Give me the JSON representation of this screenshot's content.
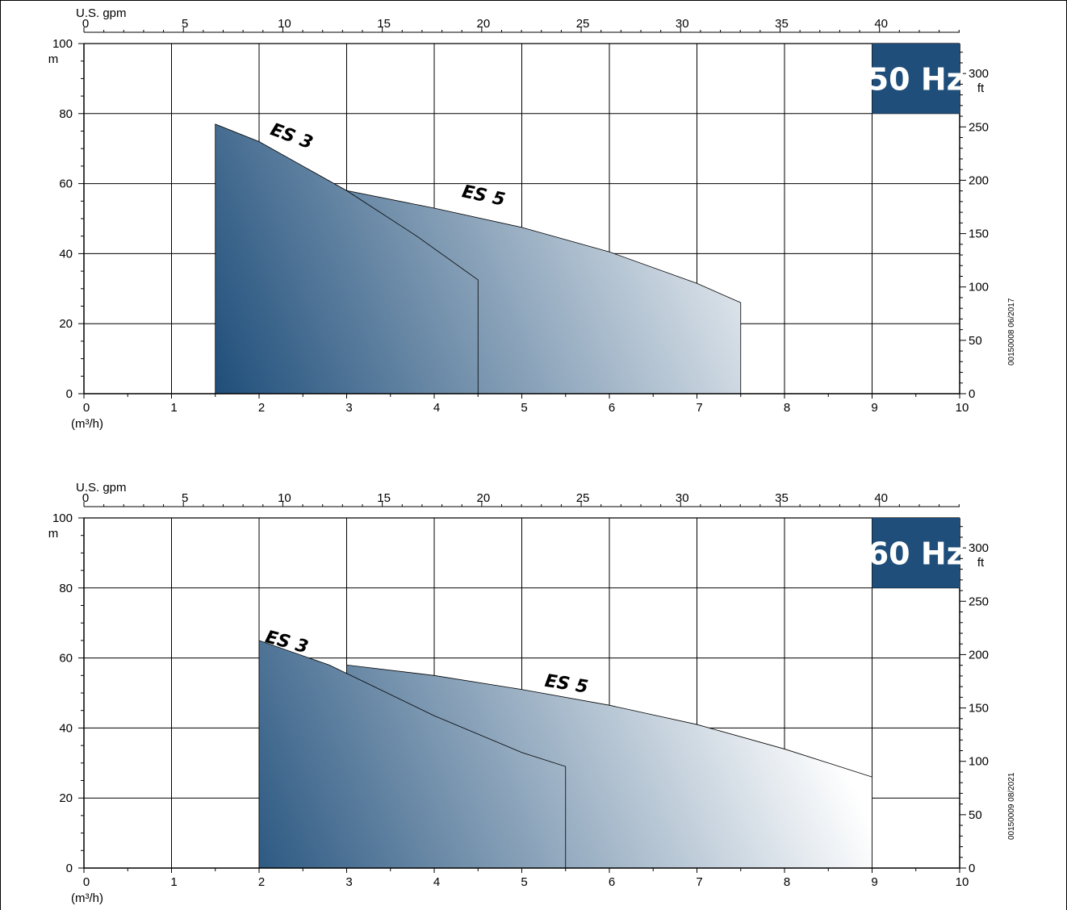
{
  "colors": {
    "accent": "#1f4e7a",
    "fill_dark": "#1f4e7a",
    "fill_light": "#ffffff",
    "grid": "#000000",
    "badge_text": "#ffffff"
  },
  "chart_data": [
    {
      "type": "area",
      "title": "",
      "frequency_badge": "50 Hz",
      "code": "00150008  06/2017",
      "xlabel": "(m³/h)",
      "x2label": "U.S. gpm",
      "ylabel": "m",
      "y2label": "ft",
      "xlim": [
        0,
        10
      ],
      "ylim": [
        0,
        100
      ],
      "x_ticks": [
        "0",
        "1",
        "2",
        "3",
        "4",
        "5",
        "6",
        "7",
        "8",
        "9",
        "10"
      ],
      "y_ticks": [
        "0",
        "20",
        "40",
        "60",
        "80",
        "100"
      ],
      "x2_ticks": [
        "0",
        "5",
        "10",
        "15",
        "20",
        "25",
        "30",
        "35",
        "40"
      ],
      "y2_ticks": [
        "0",
        "50",
        "100",
        "150",
        "200",
        "250",
        "300"
      ],
      "grid": true,
      "series": [
        {
          "name": "ES 5",
          "x": [
            3,
            4,
            5,
            6,
            7,
            7.5
          ],
          "y": [
            58,
            53,
            47.5,
            40.5,
            31.5,
            26
          ]
        },
        {
          "name": "ES 3",
          "x": [
            1.5,
            2,
            3,
            3.8,
            4.5
          ],
          "y": [
            77,
            72,
            58,
            45,
            32.5
          ]
        }
      ]
    },
    {
      "type": "area",
      "title": "",
      "frequency_badge": "60 Hz",
      "code": "00150009  08/2021",
      "xlabel": "(m³/h)",
      "x2label": "U.S. gpm",
      "ylabel": "m",
      "y2label": "ft",
      "xlim": [
        0,
        10
      ],
      "ylim": [
        0,
        100
      ],
      "x_ticks": [
        "0",
        "1",
        "2",
        "3",
        "4",
        "5",
        "6",
        "7",
        "8",
        "9",
        "10"
      ],
      "y_ticks": [
        "0",
        "20",
        "40",
        "60",
        "80",
        "100"
      ],
      "x2_ticks": [
        "0",
        "5",
        "10",
        "15",
        "20",
        "25",
        "30",
        "35",
        "40"
      ],
      "y2_ticks": [
        "0",
        "50",
        "100",
        "150",
        "200",
        "250",
        "300"
      ],
      "grid": true,
      "series": [
        {
          "name": "ES 5",
          "x": [
            3,
            4,
            5,
            6,
            7,
            8,
            8.5,
            9
          ],
          "y": [
            58,
            55,
            51,
            46.5,
            41,
            34,
            30,
            26
          ]
        },
        {
          "name": "ES 3",
          "x": [
            2,
            2.8,
            4,
            5,
            5.5
          ],
          "y": [
            65,
            58,
            43.5,
            33,
            29
          ]
        }
      ]
    }
  ]
}
